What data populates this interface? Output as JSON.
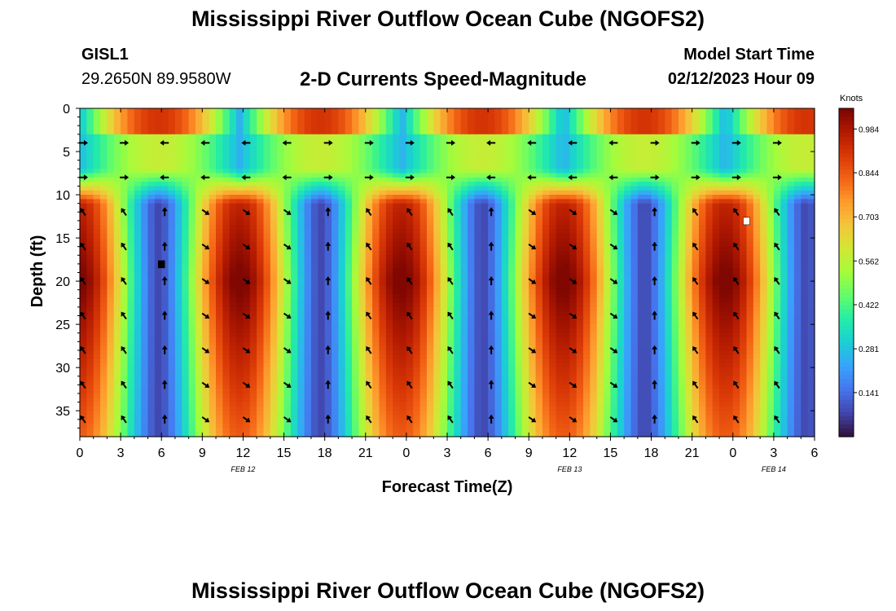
{
  "header": {
    "title": "Mississippi River Outflow Ocean Cube (NGOFS2)",
    "station": "GISL1",
    "coords": "29.2650N  89.9580W",
    "subtitle": "2-D Currents Speed-Magnitude",
    "model_start_label": "Model Start Time",
    "model_start_value": "02/12/2023 Hour 09",
    "footer_title": "Mississippi River Outflow Ocean Cube (NGOFS2)"
  },
  "chart_data": {
    "type": "heatmap",
    "title": "2-D Currents Speed-Magnitude",
    "xlabel": "Forecast Time(Z)",
    "ylabel": "Depth (ft)",
    "x_ticks": [
      "0",
      "3",
      "6",
      "9",
      "12",
      "15",
      "18",
      "21",
      "0",
      "3",
      "6",
      "9",
      "12",
      "15",
      "18",
      "21",
      "0",
      "3",
      "6"
    ],
    "date_labels": [
      "FEB 12",
      "FEB 13",
      "FEB 14"
    ],
    "y_ticks": [
      "0",
      "5",
      "10",
      "15",
      "20",
      "25",
      "30",
      "35"
    ],
    "x_range": [
      "2023-02-12 00Z",
      "2023-02-14 06Z"
    ],
    "y_range_ft": [
      0,
      38
    ],
    "colorbar": {
      "label": "Knots",
      "ticks": [
        "0.984",
        "0.844",
        "0.703",
        "0.562",
        "0.422",
        "0.281",
        "0.141"
      ],
      "range": [
        0.0,
        1.05
      ],
      "colors": [
        "#30123b",
        "#4145ab",
        "#4675ed",
        "#39a2fc",
        "#1bcfd4",
        "#24eca6",
        "#61fc6c",
        "#a4fc3b",
        "#d1e834",
        "#f3c63a",
        "#fe9b2d",
        "#f36315",
        "#d93806",
        "#b11901",
        "#7a0402"
      ]
    },
    "legend_position": "right",
    "markers": [
      {
        "label": "white-square",
        "hour": 49,
        "depth_ft": 13
      },
      {
        "label": "black-square",
        "hour": 6,
        "depth_ft": 18
      }
    ]
  }
}
